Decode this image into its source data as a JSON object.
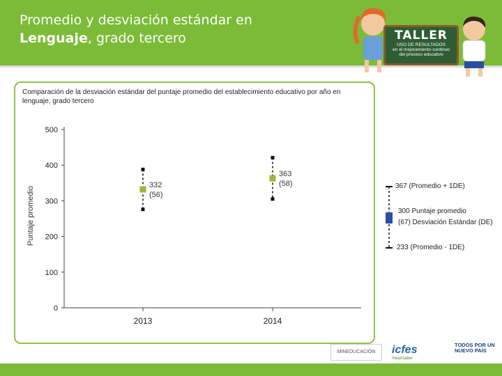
{
  "slide": {
    "title_line1": "Promedio y desviación estándar en",
    "title_bold": "Lenguaje",
    "title_rest": ", grado tercero"
  },
  "brand": {
    "taller": "TALLER",
    "taller_sub1": "USO DE RESULTADOS",
    "taller_sub2": "en el mejoramiento continuo",
    "taller_sub3": "del proceso educativo"
  },
  "footer": {
    "mineducacion": "MINEDUCACIÓN",
    "icfes": "icfes",
    "icfes_sub": "mejorsaber",
    "gov_line1": "TODOS POR UN",
    "gov_line2": "NUEVO PAÍS"
  },
  "legend": {
    "upper": "367 (Promedio + 1DE)",
    "mean": "300 Puntaje promedio",
    "sd": "(67) Desviación Estándar (DE)",
    "lower": "233 (Promedio - 1DE)"
  },
  "colors": {
    "header_green": "#7cbb37",
    "mean_marker": "#9ab83a",
    "legend_marker": "#2a4fa0",
    "whisker": "#111111"
  },
  "chart_data": {
    "type": "scatter",
    "title": "Comparación de la desviación estándar del puntaje promedio del establecimiento educativo por año en lenguaje, grado tercero",
    "xlabel": "",
    "ylabel": "Puntaje promedio",
    "categories": [
      "2013",
      "2014"
    ],
    "series": [
      {
        "means": [
          332,
          363
        ],
        "sd": [
          56,
          58
        ],
        "upper": [
          388,
          421
        ],
        "lower": [
          276,
          305
        ]
      }
    ],
    "ylim": [
      0,
      500
    ],
    "yticks": [
      0,
      100,
      200,
      300,
      400,
      500
    ],
    "point_labels": [
      "332",
      "363"
    ],
    "sd_labels": [
      "(56)",
      "(58)"
    ],
    "grid": false
  }
}
